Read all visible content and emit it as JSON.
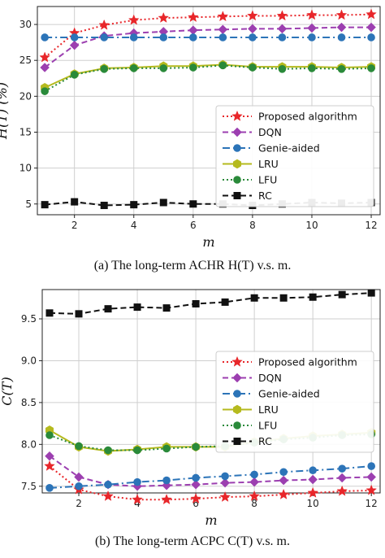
{
  "chart_data": [
    {
      "type": "line",
      "xlabel": "m",
      "ylabel": "H(T) (%)",
      "xlim": [
        0.75,
        12.3
      ],
      "ylim": [
        3.5,
        32.5
      ],
      "xticks": [
        2,
        4,
        6,
        8,
        10,
        12
      ],
      "yticks": [
        5,
        10,
        15,
        20,
        25,
        30
      ],
      "grid": true,
      "legend_position": "center-right",
      "caption": "(a) The long-term ACHR H(T) v.s. m.",
      "x": [
        1,
        2,
        3,
        4,
        5,
        6,
        7,
        8,
        9,
        10,
        11,
        12
      ],
      "series": [
        {
          "name": "Proposed algorithm",
          "color": "#e8262a",
          "marker": "star",
          "line": "dotted",
          "values": [
            25.4,
            28.8,
            29.9,
            30.6,
            30.9,
            31.0,
            31.1,
            31.2,
            31.2,
            31.3,
            31.3,
            31.4
          ]
        },
        {
          "name": "DQN",
          "color": "#9c3fb0",
          "marker": "diamond",
          "line": "dashed",
          "values": [
            24.0,
            27.1,
            28.4,
            28.8,
            29.0,
            29.2,
            29.3,
            29.4,
            29.4,
            29.5,
            29.6,
            29.6
          ]
        },
        {
          "name": "Genie-aided",
          "color": "#2c74b8",
          "marker": "circle",
          "line": "dashdot",
          "values": [
            28.2,
            28.2,
            28.2,
            28.2,
            28.2,
            28.2,
            28.2,
            28.2,
            28.2,
            28.2,
            28.2,
            28.2
          ]
        },
        {
          "name": "LRU",
          "color": "#b5ba1e",
          "marker": "hexagon",
          "line": "solid",
          "values": [
            21.2,
            23.1,
            23.9,
            24.0,
            24.2,
            24.2,
            24.4,
            24.1,
            24.1,
            24.1,
            24.0,
            24.1
          ]
        },
        {
          "name": "LFU",
          "color": "#2a8a3a",
          "marker": "circle",
          "line": "dotted",
          "values": [
            20.7,
            23.0,
            23.8,
            23.9,
            23.9,
            24.0,
            24.3,
            24.0,
            23.8,
            23.9,
            23.8,
            23.9
          ]
        },
        {
          "name": "RC",
          "color": "#111111",
          "marker": "square",
          "line": "dashed",
          "values": [
            4.9,
            5.3,
            4.8,
            4.9,
            5.2,
            5.0,
            5.0,
            4.8,
            5.0,
            5.2,
            5.1,
            5.2
          ]
        }
      ]
    },
    {
      "type": "line",
      "xlabel": "m",
      "ylabel": "C(T)",
      "xlim": [
        0.75,
        12.3
      ],
      "ylim": [
        7.42,
        9.85
      ],
      "xticks": [
        2,
        4,
        6,
        8,
        10,
        12
      ],
      "yticks": [
        7.5,
        8.0,
        8.5,
        9.0,
        9.5
      ],
      "ytick_labels": [
        "7.5",
        "8.0",
        "8.5",
        "9.0",
        "9.5"
      ],
      "grid": true,
      "legend_position": "center-right",
      "caption": "(b) The long-term ACPC C(T) v.s. m.",
      "x": [
        1,
        2,
        3,
        4,
        5,
        6,
        7,
        8,
        9,
        10,
        11,
        12
      ],
      "series": [
        {
          "name": "Proposed algorithm",
          "color": "#e8262a",
          "marker": "star",
          "line": "dotted",
          "values": [
            7.74,
            7.46,
            7.38,
            7.34,
            7.34,
            7.35,
            7.37,
            7.38,
            7.4,
            7.42,
            7.44,
            7.45
          ]
        },
        {
          "name": "DQN",
          "color": "#9c3fb0",
          "marker": "diamond",
          "line": "dashed",
          "values": [
            7.86,
            7.61,
            7.52,
            7.5,
            7.51,
            7.52,
            7.54,
            7.55,
            7.57,
            7.58,
            7.6,
            7.61
          ]
        },
        {
          "name": "Genie-aided",
          "color": "#2c74b8",
          "marker": "circle",
          "line": "dashdot",
          "values": [
            7.48,
            7.5,
            7.52,
            7.55,
            7.57,
            7.6,
            7.62,
            7.64,
            7.67,
            7.69,
            7.71,
            7.74
          ]
        },
        {
          "name": "LRU",
          "color": "#b5ba1e",
          "marker": "hexagon",
          "line": "solid",
          "values": [
            8.17,
            7.97,
            7.92,
            7.94,
            7.97,
            7.97,
            7.97,
            8.03,
            8.07,
            8.1,
            8.12,
            8.14
          ]
        },
        {
          "name": "LFU",
          "color": "#2a8a3a",
          "marker": "circle",
          "line": "dotted",
          "values": [
            8.11,
            7.98,
            7.93,
            7.93,
            7.95,
            7.97,
            7.98,
            8.02,
            8.06,
            8.08,
            8.11,
            8.12
          ]
        },
        {
          "name": "RC",
          "color": "#111111",
          "marker": "square",
          "line": "dashed",
          "values": [
            9.57,
            9.56,
            9.62,
            9.64,
            9.63,
            9.68,
            9.7,
            9.75,
            9.75,
            9.76,
            9.79,
            9.81
          ]
        }
      ]
    }
  ]
}
